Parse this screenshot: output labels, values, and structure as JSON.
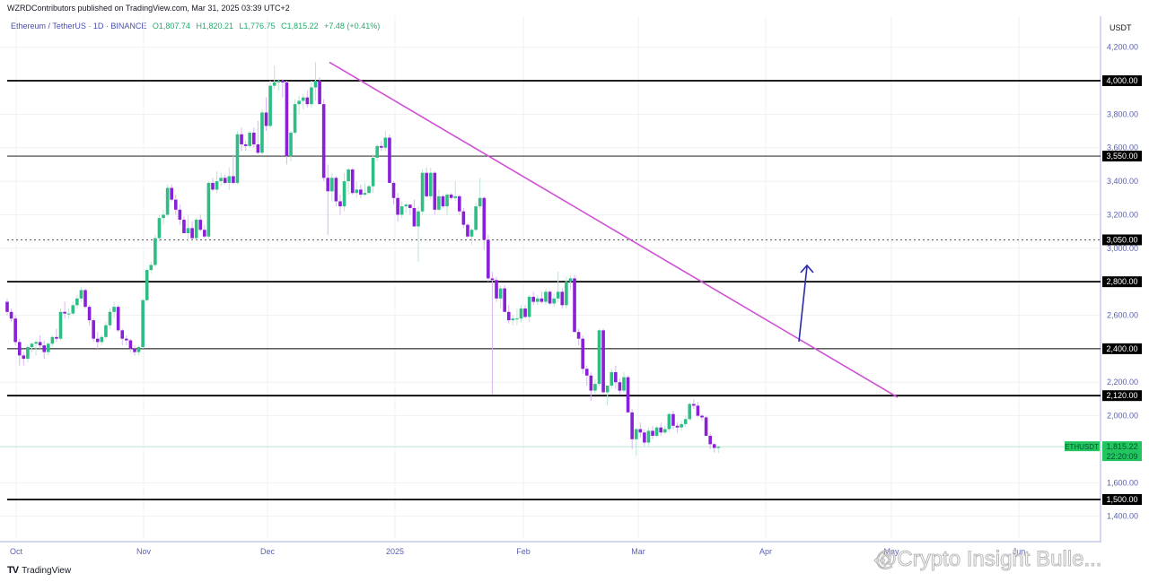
{
  "header": {
    "published_line": "WZRDContributors published on TradingView.com, Mar 31, 2025 03:39 UTC+2",
    "symbol_title": "Ethereum / TetherUS · 1D · BINANCE",
    "open": "O1,807.74",
    "high": "H1,820.21",
    "low": "L1,776.75",
    "close": "C1,815.22",
    "change": "+7.48 (+0.41%)"
  },
  "price_axis": {
    "currency": "USDT",
    "ticks": [
      "4,200.00",
      "3,800.00",
      "3,600.00",
      "3,400.00",
      "3,200.00",
      "3,000.00",
      "2,600.00",
      "2,200.00",
      "2,000.00",
      "1,600.00",
      "1,400.00"
    ]
  },
  "time_axis": {
    "labels": [
      "Oct",
      "Nov",
      "Dec",
      "2025",
      "Feb",
      "Mar",
      "Apr",
      "May",
      "Jun"
    ]
  },
  "last_price": {
    "symbol_tag": "ETHUSDT",
    "price": "1,815.22",
    "countdown": "22:20:09",
    "color": "#22c55e"
  },
  "colors": {
    "up": "#2ebd85",
    "down": "#8a1fd8",
    "trendline": "#d14fd6",
    "arrow": "#2b2aa8",
    "level": "#000000"
  },
  "footer": {
    "brand": "TradingView",
    "watermark": "@Crypto Insight Bulle..."
  },
  "chart_data": {
    "type": "candlestick",
    "title": "Ethereum / TetherUS · 1D · BINANCE",
    "xlabel": "",
    "ylabel": "USDT",
    "ylim": [
      1330,
      4280
    ],
    "x_ticks": [
      "Oct",
      "Nov",
      "Dec",
      "2025",
      "Feb",
      "Mar",
      "Apr",
      "May",
      "Jun"
    ],
    "horizontal_levels": [
      {
        "price": 4000,
        "label": "4,000.00",
        "style": "solid-bold"
      },
      {
        "price": 3550,
        "label": "3,550.00",
        "style": "solid"
      },
      {
        "price": 3050,
        "label": "3,050.00",
        "style": "dotted"
      },
      {
        "price": 2800,
        "label": "2,800.00",
        "style": "solid-bold"
      },
      {
        "price": 2400,
        "label": "2,400.00",
        "style": "solid"
      },
      {
        "price": 2120,
        "label": "2,120.00",
        "style": "solid-bold"
      },
      {
        "price": 1500,
        "label": "1,500.00",
        "style": "solid-bold"
      }
    ],
    "trendline": {
      "from": {
        "date": "2024-12-16",
        "price": 4110
      },
      "to": {
        "date": "2025-05-01",
        "price": 2110
      }
    },
    "arrow": {
      "from": {
        "date": "2025-04-08",
        "price": 2440
      },
      "to": {
        "date": "2025-04-10",
        "price": 2920
      }
    },
    "last_close": 1815.22,
    "candles_ohlc": [
      [
        2680,
        2700,
        2600,
        2620
      ],
      [
        2620,
        2640,
        2560,
        2580
      ],
      [
        2580,
        2600,
        2420,
        2440
      ],
      [
        2440,
        2460,
        2300,
        2360
      ],
      [
        2360,
        2380,
        2300,
        2340
      ],
      [
        2340,
        2420,
        2320,
        2410
      ],
      [
        2410,
        2440,
        2380,
        2430
      ],
      [
        2430,
        2450,
        2360,
        2440
      ],
      [
        2440,
        2480,
        2400,
        2420
      ],
      [
        2420,
        2450,
        2340,
        2380
      ],
      [
        2380,
        2440,
        2360,
        2430
      ],
      [
        2430,
        2480,
        2410,
        2470
      ],
      [
        2470,
        2520,
        2440,
        2460
      ],
      [
        2460,
        2640,
        2450,
        2620
      ],
      [
        2620,
        2680,
        2580,
        2610
      ],
      [
        2610,
        2640,
        2580,
        2610
      ],
      [
        2610,
        2680,
        2600,
        2660
      ],
      [
        2660,
        2720,
        2640,
        2700
      ],
      [
        2700,
        2770,
        2680,
        2750
      ],
      [
        2750,
        2760,
        2640,
        2650
      ],
      [
        2650,
        2660,
        2540,
        2570
      ],
      [
        2570,
        2580,
        2440,
        2460
      ],
      [
        2460,
        2500,
        2400,
        2440
      ],
      [
        2440,
        2480,
        2420,
        2470
      ],
      [
        2470,
        2560,
        2460,
        2540
      ],
      [
        2540,
        2640,
        2520,
        2620
      ],
      [
        2620,
        2680,
        2580,
        2650
      ],
      [
        2650,
        2660,
        2500,
        2510
      ],
      [
        2510,
        2520,
        2420,
        2460
      ],
      [
        2460,
        2480,
        2420,
        2450
      ],
      [
        2450,
        2460,
        2380,
        2400
      ],
      [
        2400,
        2420,
        2360,
        2380
      ],
      [
        2380,
        2420,
        2360,
        2410
      ],
      [
        2410,
        2700,
        2400,
        2690
      ],
      [
        2690,
        2880,
        2680,
        2870
      ],
      [
        2870,
        2920,
        2850,
        2900
      ],
      [
        2900,
        3080,
        2890,
        3060
      ],
      [
        3060,
        3200,
        3040,
        3180
      ],
      [
        3180,
        3230,
        3140,
        3200
      ],
      [
        3200,
        3380,
        3190,
        3360
      ],
      [
        3360,
        3380,
        3280,
        3290
      ],
      [
        3290,
        3320,
        3200,
        3230
      ],
      [
        3230,
        3260,
        3140,
        3170
      ],
      [
        3170,
        3190,
        3100,
        3090
      ],
      [
        3090,
        3200,
        3040,
        3120
      ],
      [
        3120,
        3160,
        3050,
        3060
      ],
      [
        3060,
        3180,
        3050,
        3170
      ],
      [
        3170,
        3200,
        3100,
        3110
      ],
      [
        3110,
        3140,
        3060,
        3070
      ],
      [
        3070,
        3400,
        3060,
        3390
      ],
      [
        3390,
        3420,
        3340,
        3350
      ],
      [
        3350,
        3460,
        3330,
        3400
      ],
      [
        3400,
        3450,
        3370,
        3420
      ],
      [
        3420,
        3440,
        3380,
        3390
      ],
      [
        3390,
        3480,
        3350,
        3430
      ],
      [
        3430,
        3560,
        3380,
        3390
      ],
      [
        3390,
        3700,
        3380,
        3680
      ],
      [
        3680,
        3720,
        3580,
        3620
      ],
      [
        3620,
        3640,
        3580,
        3610
      ],
      [
        3610,
        3700,
        3600,
        3690
      ],
      [
        3690,
        3720,
        3600,
        3620
      ],
      [
        3620,
        3760,
        3560,
        3570
      ],
      [
        3570,
        3830,
        3560,
        3810
      ],
      [
        3810,
        3900,
        3700,
        3730
      ],
      [
        3730,
        4000,
        3720,
        3970
      ],
      [
        3970,
        4090,
        3950,
        3990
      ],
      [
        3990,
        4010,
        3940,
        4000
      ],
      [
        4000,
        4010,
        3900,
        3990
      ],
      [
        3990,
        4000,
        3500,
        3550
      ],
      [
        3550,
        3700,
        3520,
        3690
      ],
      [
        3690,
        3890,
        3680,
        3860
      ],
      [
        3860,
        3910,
        3800,
        3880
      ],
      [
        3880,
        3920,
        3830,
        3900
      ],
      [
        3900,
        3940,
        3840,
        3860
      ],
      [
        3860,
        4000,
        3840,
        3960
      ],
      [
        3960,
        4110,
        3880,
        4000
      ],
      [
        4000,
        4020,
        3880,
        3860
      ],
      [
        3860,
        3890,
        3400,
        3420
      ],
      [
        3420,
        3500,
        3080,
        3340
      ],
      [
        3340,
        3450,
        3280,
        3420
      ],
      [
        3420,
        3430,
        3250,
        3280
      ],
      [
        3280,
        3320,
        3200,
        3250
      ],
      [
        3250,
        3450,
        3220,
        3400
      ],
      [
        3400,
        3480,
        3320,
        3470
      ],
      [
        3470,
        3480,
        3320,
        3330
      ],
      [
        3330,
        3400,
        3300,
        3350
      ],
      [
        3350,
        3380,
        3300,
        3320
      ],
      [
        3320,
        3390,
        3310,
        3330
      ],
      [
        3330,
        3380,
        3320,
        3370
      ],
      [
        3370,
        3560,
        3330,
        3540
      ],
      [
        3540,
        3620,
        3520,
        3610
      ],
      [
        3610,
        3640,
        3580,
        3600
      ],
      [
        3600,
        3700,
        3580,
        3660
      ],
      [
        3660,
        3680,
        3400,
        3390
      ],
      [
        3390,
        3400,
        3260,
        3300
      ],
      [
        3300,
        3330,
        3160,
        3200
      ],
      [
        3200,
        3280,
        3180,
        3250
      ],
      [
        3250,
        3270,
        3210,
        3260
      ],
      [
        3260,
        3260,
        3200,
        3240
      ],
      [
        3240,
        3290,
        3200,
        3130
      ],
      [
        3130,
        3250,
        2920,
        3220
      ],
      [
        3220,
        3470,
        3200,
        3450
      ],
      [
        3450,
        3480,
        3300,
        3310
      ],
      [
        3310,
        3480,
        3290,
        3450
      ],
      [
        3450,
        3460,
        3200,
        3230
      ],
      [
        3230,
        3350,
        3220,
        3310
      ],
      [
        3310,
        3320,
        3240,
        3250
      ],
      [
        3250,
        3330,
        3200,
        3320
      ],
      [
        3320,
        3330,
        3290,
        3300
      ],
      [
        3300,
        3400,
        3280,
        3310
      ],
      [
        3310,
        3320,
        3200,
        3220
      ],
      [
        3220,
        3240,
        3120,
        3140
      ],
      [
        3140,
        3150,
        3060,
        3070
      ],
      [
        3070,
        3120,
        3020,
        3110
      ],
      [
        3110,
        3270,
        3100,
        3250
      ],
      [
        3250,
        3420,
        3230,
        3300
      ],
      [
        3300,
        3310,
        2990,
        3050
      ],
      [
        3050,
        3080,
        2800,
        2820
      ],
      [
        2820,
        2860,
        2130,
        2810
      ],
      [
        2810,
        2830,
        2680,
        2700
      ],
      [
        2700,
        2780,
        2640,
        2760
      ],
      [
        2760,
        2780,
        2620,
        2620
      ],
      [
        2620,
        2660,
        2550,
        2570
      ],
      [
        2570,
        2600,
        2540,
        2580
      ],
      [
        2580,
        2640,
        2540,
        2580
      ],
      [
        2580,
        2660,
        2560,
        2640
      ],
      [
        2640,
        2660,
        2580,
        2590
      ],
      [
        2590,
        2720,
        2560,
        2710
      ],
      [
        2710,
        2740,
        2660,
        2680
      ],
      [
        2680,
        2720,
        2660,
        2700
      ],
      [
        2700,
        2740,
        2670,
        2680
      ],
      [
        2680,
        2760,
        2660,
        2740
      ],
      [
        2740,
        2750,
        2660,
        2670
      ],
      [
        2670,
        2730,
        2650,
        2700
      ],
      [
        2700,
        2860,
        2680,
        2740
      ],
      [
        2740,
        2760,
        2640,
        2660
      ],
      [
        2660,
        2830,
        2640,
        2800
      ],
      [
        2800,
        2840,
        2750,
        2820
      ],
      [
        2820,
        2840,
        2500,
        2500
      ],
      [
        2500,
        2520,
        2420,
        2460
      ],
      [
        2460,
        2480,
        2250,
        2280
      ],
      [
        2280,
        2300,
        2180,
        2240
      ],
      [
        2240,
        2260,
        2090,
        2150
      ],
      [
        2150,
        2220,
        2130,
        2190
      ],
      [
        2190,
        2520,
        2180,
        2510
      ],
      [
        2510,
        2520,
        2130,
        2140
      ],
      [
        2140,
        2160,
        2060,
        2180
      ],
      [
        2180,
        2280,
        2160,
        2260
      ],
      [
        2260,
        2300,
        2160,
        2200
      ],
      [
        2200,
        2220,
        2130,
        2150
      ],
      [
        2150,
        2260,
        2140,
        2230
      ],
      [
        2230,
        2240,
        2060,
        2020
      ],
      [
        2020,
        2040,
        1800,
        1860
      ],
      [
        1860,
        1930,
        1760,
        1920
      ],
      [
        1920,
        1960,
        1870,
        1900
      ],
      [
        1900,
        1920,
        1820,
        1840
      ],
      [
        1840,
        1930,
        1820,
        1910
      ],
      [
        1910,
        1940,
        1860,
        1880
      ],
      [
        1880,
        1940,
        1870,
        1930
      ],
      [
        1930,
        1960,
        1880,
        1900
      ],
      [
        1900,
        1940,
        1890,
        1920
      ],
      [
        1920,
        2020,
        1900,
        2010
      ],
      [
        2010,
        2030,
        1920,
        1940
      ],
      [
        1940,
        1960,
        1900,
        1930
      ],
      [
        1930,
        1970,
        1910,
        1950
      ],
      [
        1950,
        2000,
        1930,
        1980
      ],
      [
        1980,
        2080,
        1970,
        2070
      ],
      [
        2070,
        2100,
        2040,
        2060
      ],
      [
        2060,
        2080,
        1990,
        2000
      ],
      [
        2000,
        2010,
        1970,
        1990
      ],
      [
        1990,
        2000,
        1880,
        1880
      ],
      [
        1880,
        1900,
        1800,
        1830
      ],
      [
        1830,
        1840,
        1780,
        1808
      ],
      [
        1808,
        1820,
        1777,
        1815
      ]
    ]
  }
}
